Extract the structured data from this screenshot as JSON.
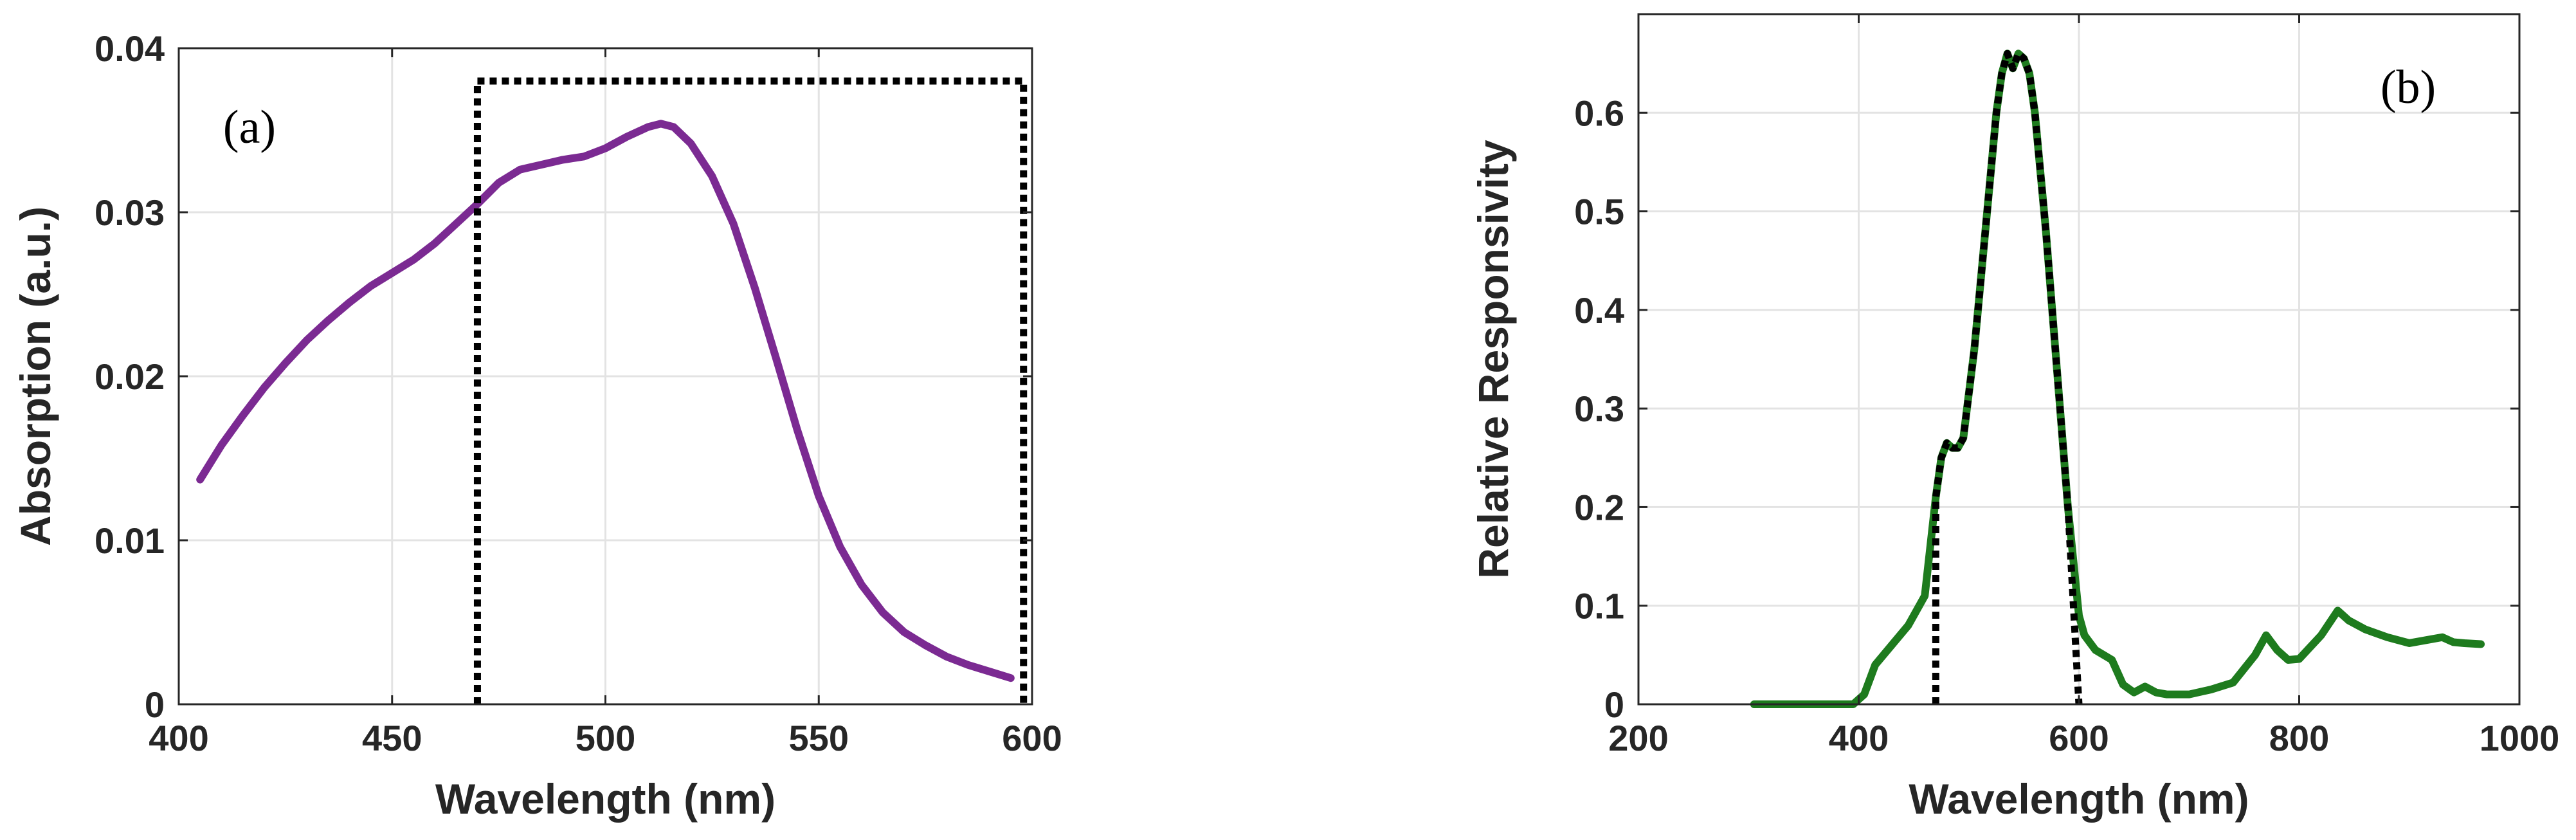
{
  "chart_data": [
    {
      "type": "line",
      "panel_label": "(a)",
      "xlabel": "Wavelength (nm)",
      "ylabel": "Absorption (a.u.)",
      "xlim": [
        400,
        600
      ],
      "ylim": [
        0,
        0.04
      ],
      "xticks": [
        400,
        450,
        500,
        550,
        600
      ],
      "yticks": [
        0,
        0.01,
        0.02,
        0.03,
        0.04
      ],
      "xtick_labels": [
        "400",
        "450",
        "500",
        "550",
        "600"
      ],
      "ytick_labels": [
        "0",
        "0.01",
        "0.02",
        "0.03",
        "0.04"
      ],
      "grid": true,
      "series": [
        {
          "color": "#7B2A92",
          "style": "solid",
          "x": [
            405,
            410,
            415,
            420,
            425,
            430,
            435,
            440,
            445,
            450,
            455,
            460,
            465,
            470,
            475,
            480,
            485,
            490,
            495,
            500,
            505,
            510,
            513,
            516,
            520,
            525,
            530,
            535,
            540,
            545,
            550,
            555,
            560,
            565,
            570,
            575,
            580,
            585,
            590,
            595
          ],
          "y": [
            0.0137,
            0.0158,
            0.0176,
            0.0193,
            0.0208,
            0.0222,
            0.0234,
            0.0245,
            0.0255,
            0.0263,
            0.0271,
            0.0281,
            0.0293,
            0.0305,
            0.0318,
            0.0326,
            0.0329,
            0.0332,
            0.0334,
            0.0339,
            0.0346,
            0.0352,
            0.0354,
            0.0352,
            0.0342,
            0.0322,
            0.0293,
            0.0254,
            0.0211,
            0.0167,
            0.0127,
            0.0096,
            0.0073,
            0.0056,
            0.0044,
            0.0036,
            0.0029,
            0.0024,
            0.002,
            0.0016
          ]
        },
        {
          "color": "#000000",
          "style": "dotted",
          "x": [
            470,
            470,
            598,
            598
          ],
          "y": [
            0,
            0.038,
            0.038,
            0
          ]
        }
      ]
    },
    {
      "type": "line",
      "panel_label": "(b)",
      "xlabel": "Wavelength (nm)",
      "ylabel": "Relative Responsivity",
      "xlim": [
        200,
        1000
      ],
      "ylim": [
        0,
        0.7
      ],
      "xticks": [
        200,
        400,
        600,
        800,
        1000
      ],
      "yticks": [
        0,
        0.1,
        0.2,
        0.3,
        0.4,
        0.5,
        0.6
      ],
      "xtick_labels": [
        "200",
        "400",
        "600",
        "800",
        "1000"
      ],
      "ytick_labels": [
        "0",
        "0.1",
        "0.2",
        "0.3",
        "0.4",
        "0.5",
        "0.6"
      ],
      "grid": true,
      "series": [
        {
          "color": "#1E7B1E",
          "style": "solid",
          "x": [
            305,
            350,
            395,
            405,
            415,
            430,
            445,
            460,
            465,
            470,
            475,
            480,
            485,
            490,
            495,
            505,
            515,
            525,
            530,
            535,
            540,
            545,
            550,
            555,
            560,
            570,
            580,
            590,
            600,
            605,
            615,
            630,
            640,
            650,
            660,
            670,
            680,
            700,
            720,
            740,
            760,
            770,
            780,
            790,
            800,
            820,
            835,
            845,
            860,
            880,
            900,
            920,
            930,
            940,
            950,
            965
          ],
          "y": [
            0,
            0,
            0,
            0.01,
            0.04,
            0.06,
            0.08,
            0.11,
            0.16,
            0.21,
            0.25,
            0.265,
            0.26,
            0.26,
            0.27,
            0.36,
            0.48,
            0.6,
            0.64,
            0.66,
            0.645,
            0.66,
            0.655,
            0.64,
            0.6,
            0.48,
            0.34,
            0.2,
            0.09,
            0.07,
            0.055,
            0.045,
            0.02,
            0.012,
            0.018,
            0.012,
            0.01,
            0.01,
            0.015,
            0.022,
            0.05,
            0.07,
            0.055,
            0.045,
            0.046,
            0.07,
            0.095,
            0.085,
            0.076,
            0.068,
            0.062,
            0.066,
            0.068,
            0.063,
            0.062,
            0.061
          ]
        },
        {
          "color": "#000000",
          "style": "dotted",
          "x": [
            470,
            470,
            475,
            480,
            485,
            490,
            495,
            505,
            515,
            525,
            530,
            535,
            540,
            545,
            550,
            555,
            560,
            570,
            580,
            590,
            600
          ],
          "y": [
            0,
            0.21,
            0.25,
            0.265,
            0.26,
            0.26,
            0.27,
            0.36,
            0.48,
            0.6,
            0.64,
            0.66,
            0.645,
            0.66,
            0.655,
            0.64,
            0.6,
            0.48,
            0.34,
            0.2,
            0
          ]
        }
      ]
    }
  ]
}
